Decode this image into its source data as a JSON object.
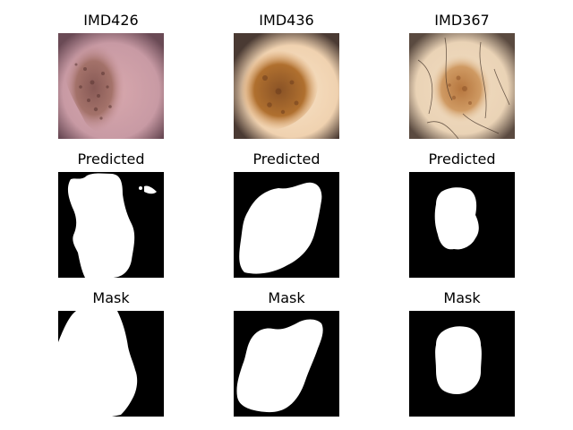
{
  "figure": {
    "columns": [
      {
        "image_title": "IMD426",
        "pred_title": "Predicted",
        "mask_title": "Mask"
      },
      {
        "image_title": "IMD436",
        "pred_title": "Predicted",
        "mask_title": "Mask"
      },
      {
        "image_title": "IMD367",
        "pred_title": "Predicted",
        "mask_title": "Mask"
      }
    ]
  }
}
